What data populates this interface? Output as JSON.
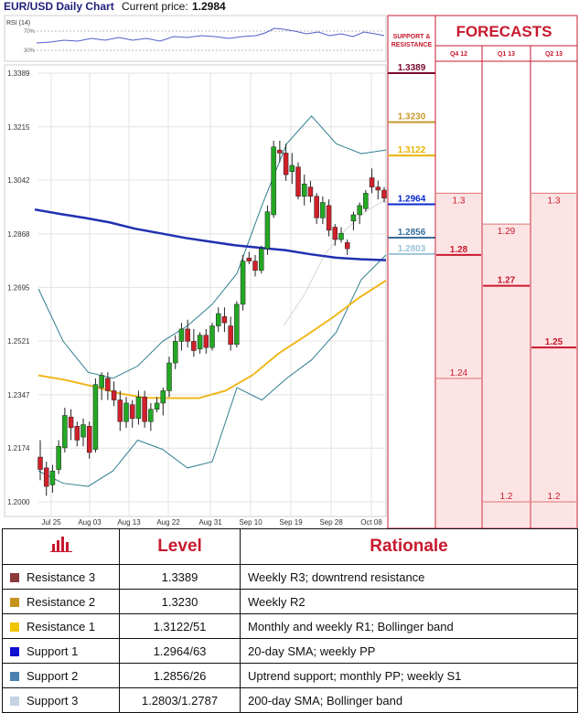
{
  "header": {
    "title": "EUR/USD Daily Chart",
    "price_label": "Current price:",
    "price_value": "1.2984"
  },
  "chart_data": {
    "type": "candlestick",
    "title": "EUR/USD Daily Chart",
    "ylim": [
      1.2,
      1.3389
    ],
    "y_ticks": [
      "1.3389",
      "1.3215",
      "1.3042",
      "1.2868",
      "1.2695",
      "1.2521",
      "1.2347",
      "1.2174",
      "1.2000"
    ],
    "x_ticks": [
      "Jul 25",
      "Aug 03",
      "Aug 13",
      "Aug 22",
      "Aug 31",
      "Sep 10",
      "Sep 19",
      "Sep 28",
      "Oct 08"
    ],
    "candles": [
      [
        1.2145,
        1.22,
        1.207,
        1.2105
      ],
      [
        1.211,
        1.213,
        1.202,
        1.205
      ],
      [
        1.2055,
        1.212,
        1.203,
        1.21
      ],
      [
        1.2105,
        1.22,
        1.209,
        1.218
      ],
      [
        1.2175,
        1.2305,
        1.216,
        1.228
      ],
      [
        1.2275,
        1.23,
        1.22,
        1.224
      ],
      [
        1.2245,
        1.226,
        1.218,
        1.22
      ],
      [
        1.221,
        1.227,
        1.218,
        1.225
      ],
      [
        1.2245,
        1.226,
        1.214,
        1.216
      ],
      [
        1.217,
        1.24,
        1.216,
        1.238
      ],
      [
        1.237,
        1.242,
        1.233,
        1.241
      ],
      [
        1.24,
        1.242,
        1.233,
        1.236
      ],
      [
        1.236,
        1.239,
        1.231,
        1.233
      ],
      [
        1.233,
        1.236,
        1.223,
        1.226
      ],
      [
        1.226,
        1.234,
        1.224,
        1.232
      ],
      [
        1.2315,
        1.233,
        1.224,
        1.227
      ],
      [
        1.227,
        1.236,
        1.225,
        1.234
      ],
      [
        1.234,
        1.236,
        1.224,
        1.226
      ],
      [
        1.226,
        1.232,
        1.223,
        1.23
      ],
      [
        1.23,
        1.234,
        1.229,
        1.232
      ],
      [
        1.232,
        1.237,
        1.228,
        1.236
      ],
      [
        1.236,
        1.247,
        1.234,
        1.245
      ],
      [
        1.245,
        1.254,
        1.243,
        1.252
      ],
      [
        1.252,
        1.258,
        1.249,
        1.256
      ],
      [
        1.256,
        1.259,
        1.25,
        1.252
      ],
      [
        1.252,
        1.256,
        1.247,
        1.249
      ],
      [
        1.2495,
        1.255,
        1.248,
        1.254
      ],
      [
        1.254,
        1.256,
        1.248,
        1.25
      ],
      [
        1.25,
        1.258,
        1.249,
        1.257
      ],
      [
        1.257,
        1.263,
        1.255,
        1.261
      ],
      [
        1.26,
        1.263,
        1.255,
        1.258
      ],
      [
        1.257,
        1.26,
        1.249,
        1.251
      ],
      [
        1.251,
        1.265,
        1.25,
        1.264
      ],
      [
        1.264,
        1.28,
        1.262,
        1.278
      ],
      [
        1.279,
        1.281,
        1.277,
        1.278
      ],
      [
        1.278,
        1.28,
        1.273,
        1.275
      ],
      [
        1.275,
        1.283,
        1.274,
        1.282
      ],
      [
        1.282,
        1.296,
        1.28,
        1.294
      ],
      [
        1.293,
        1.317,
        1.292,
        1.315
      ],
      [
        1.314,
        1.317,
        1.31,
        1.313
      ],
      [
        1.313,
        1.316,
        1.304,
        1.306
      ],
      [
        1.307,
        1.313,
        1.303,
        1.309
      ],
      [
        1.3085,
        1.31,
        1.298,
        1.299
      ],
      [
        1.299,
        1.306,
        1.296,
        1.303
      ],
      [
        1.302,
        1.304,
        1.297,
        1.299
      ],
      [
        1.299,
        1.3,
        1.29,
        1.292
      ],
      [
        1.292,
        1.299,
        1.29,
        1.297
      ],
      [
        1.296,
        1.298,
        1.286,
        1.288
      ],
      [
        1.289,
        1.29,
        1.283,
        1.285
      ],
      [
        1.285,
        1.289,
        1.284,
        1.287
      ],
      [
        1.284,
        1.285,
        1.28,
        1.282
      ],
      [
        1.291,
        1.294,
        1.288,
        1.293
      ],
      [
        1.293,
        1.297,
        1.29,
        1.296
      ],
      [
        1.295,
        1.301,
        1.294,
        1.3
      ],
      [
        1.305,
        1.308,
        1.3,
        1.302
      ],
      [
        1.302,
        1.304,
        1.298,
        1.301
      ],
      [
        1.301,
        1.302,
        1.297,
        1.2984
      ]
    ],
    "sma200": [
      1.2947,
      1.2933,
      1.292,
      1.2905,
      1.2885,
      1.287,
      1.2855,
      1.2843,
      1.2831,
      1.2823,
      1.2815,
      1.2802,
      1.2791,
      1.2786,
      1.2783
    ],
    "sma_yellow": [
      1.241,
      1.2395,
      1.2375,
      1.2352,
      1.2337,
      1.2336,
      1.2336,
      1.236,
      1.241,
      1.2482,
      1.2538,
      1.2597,
      1.2662,
      1.2717
    ],
    "bb_upper": [
      1.269,
      1.252,
      1.242,
      1.24,
      1.244,
      1.252,
      1.257,
      1.264,
      1.274,
      1.296,
      1.316,
      1.325,
      1.316,
      1.3128,
      1.314
    ],
    "bb_lower": [
      1.21,
      1.206,
      1.205,
      1.21,
      1.22,
      1.217,
      1.211,
      1.213,
      1.237,
      1.233,
      1.24,
      1.246,
      1.255,
      1.272,
      1.28
    ],
    "bb_mid": [
      1.257,
      1.267,
      1.28,
      1.288,
      1.294,
      1.298
    ],
    "rsi_label": "RSI (14)",
    "rsi_ticks": [
      "70%",
      "30%"
    ]
  },
  "sr": {
    "header_line1": "SUPPORT &",
    "header_line2": "RESISTANCE",
    "levels": [
      {
        "label": "1.3389",
        "value": 1.3389,
        "color": "#7a0a2c"
      },
      {
        "label": "1.3230",
        "value": 1.323,
        "color": "#c89a2a"
      },
      {
        "label": "1.3122",
        "value": 1.3122,
        "color": "#e8b400"
      },
      {
        "label": "1.2964",
        "value": 1.2964,
        "color": "#0a2ad0"
      },
      {
        "label": "1.2856",
        "value": 1.2856,
        "color": "#3a6e9a"
      },
      {
        "label": "1.2803",
        "value": 1.2803,
        "color": "#9cc4d8"
      }
    ]
  },
  "forecasts": {
    "title": "FORECASTS",
    "columns": [
      {
        "label": "Q4 12",
        "high": "1.3",
        "high_value": 1.3,
        "mid": "1.28",
        "mid_value": 1.28,
        "low": "1.24",
        "low_value": 1.24
      },
      {
        "label": "Q1 13",
        "high": "1.29",
        "high_value": 1.29,
        "mid": "1.27",
        "mid_value": 1.27,
        "low": "1.2",
        "low_value": 1.2
      },
      {
        "label": "Q2 13",
        "high": "1.3",
        "high_value": 1.3,
        "mid": "1.25",
        "mid_value": 1.25,
        "low": "1.2",
        "low_value": 1.2
      }
    ]
  },
  "table": {
    "col_level": "Level",
    "col_rationale": "Rationale",
    "rows": [
      {
        "name": "Resistance 3",
        "level": "1.3389",
        "rationale": "Weekly R3; downtrend resistance",
        "color": "#8b3a3a"
      },
      {
        "name": "Resistance 2",
        "level": "1.3230",
        "rationale": "Weekly R2",
        "color": "#c8931c"
      },
      {
        "name": "Resistance 1",
        "level": "1.3122/51",
        "rationale": "Monthly and weekly R1; Bollinger band",
        "color": "#f2c500"
      },
      {
        "name": "Support 1",
        "level": "1.2964/63",
        "rationale": "20-day SMA; weekly PP",
        "color": "#1010d0"
      },
      {
        "name": "Support 2",
        "level": "1.2856/26",
        "rationale": "Uptrend support; monthly PP; weekly S1",
        "color": "#4a7fae"
      },
      {
        "name": "Support 3",
        "level": "1.2803/1.2787",
        "rationale": "200-day SMA; Bollinger band",
        "color": "#c3d3e3"
      }
    ]
  }
}
